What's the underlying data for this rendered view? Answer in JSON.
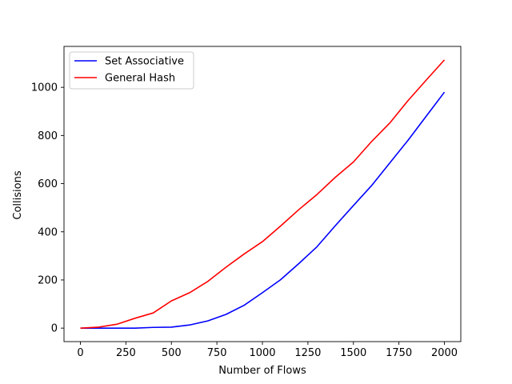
{
  "chart_data": {
    "type": "line",
    "title": "",
    "xlabel": "Number of Flows",
    "ylabel": "Collisions",
    "xlim": [
      -90,
      2090
    ],
    "ylim": [
      -56,
      1170
    ],
    "xticks": [
      0,
      250,
      500,
      750,
      1000,
      1250,
      1500,
      1750,
      2000
    ],
    "yticks": [
      0,
      200,
      400,
      600,
      800,
      1000
    ],
    "grid": false,
    "legend_position": "top-left",
    "series": [
      {
        "name": "Set Associative",
        "color": "#0000ff",
        "x": [
          0,
          100,
          200,
          300,
          400,
          500,
          600,
          700,
          800,
          900,
          1000,
          1100,
          1200,
          1300,
          1400,
          1500,
          1600,
          1700,
          1800,
          1900,
          2000
        ],
        "y": [
          0,
          0,
          0,
          0,
          3,
          4,
          13,
          30,
          57,
          95,
          147,
          201,
          268,
          338,
          425,
          509,
          592,
          686,
          780,
          880,
          980
        ]
      },
      {
        "name": "General Hash",
        "color": "#ff0000",
        "x": [
          0,
          100,
          200,
          300,
          400,
          500,
          600,
          700,
          800,
          900,
          1000,
          1100,
          1200,
          1300,
          1400,
          1500,
          1600,
          1700,
          1800,
          1900,
          2000
        ],
        "y": [
          0,
          4,
          16,
          41,
          63,
          113,
          147,
          194,
          253,
          308,
          359,
          424,
          492,
          555,
          626,
          690,
          775,
          852,
          945,
          1030,
          1114
        ]
      }
    ]
  }
}
